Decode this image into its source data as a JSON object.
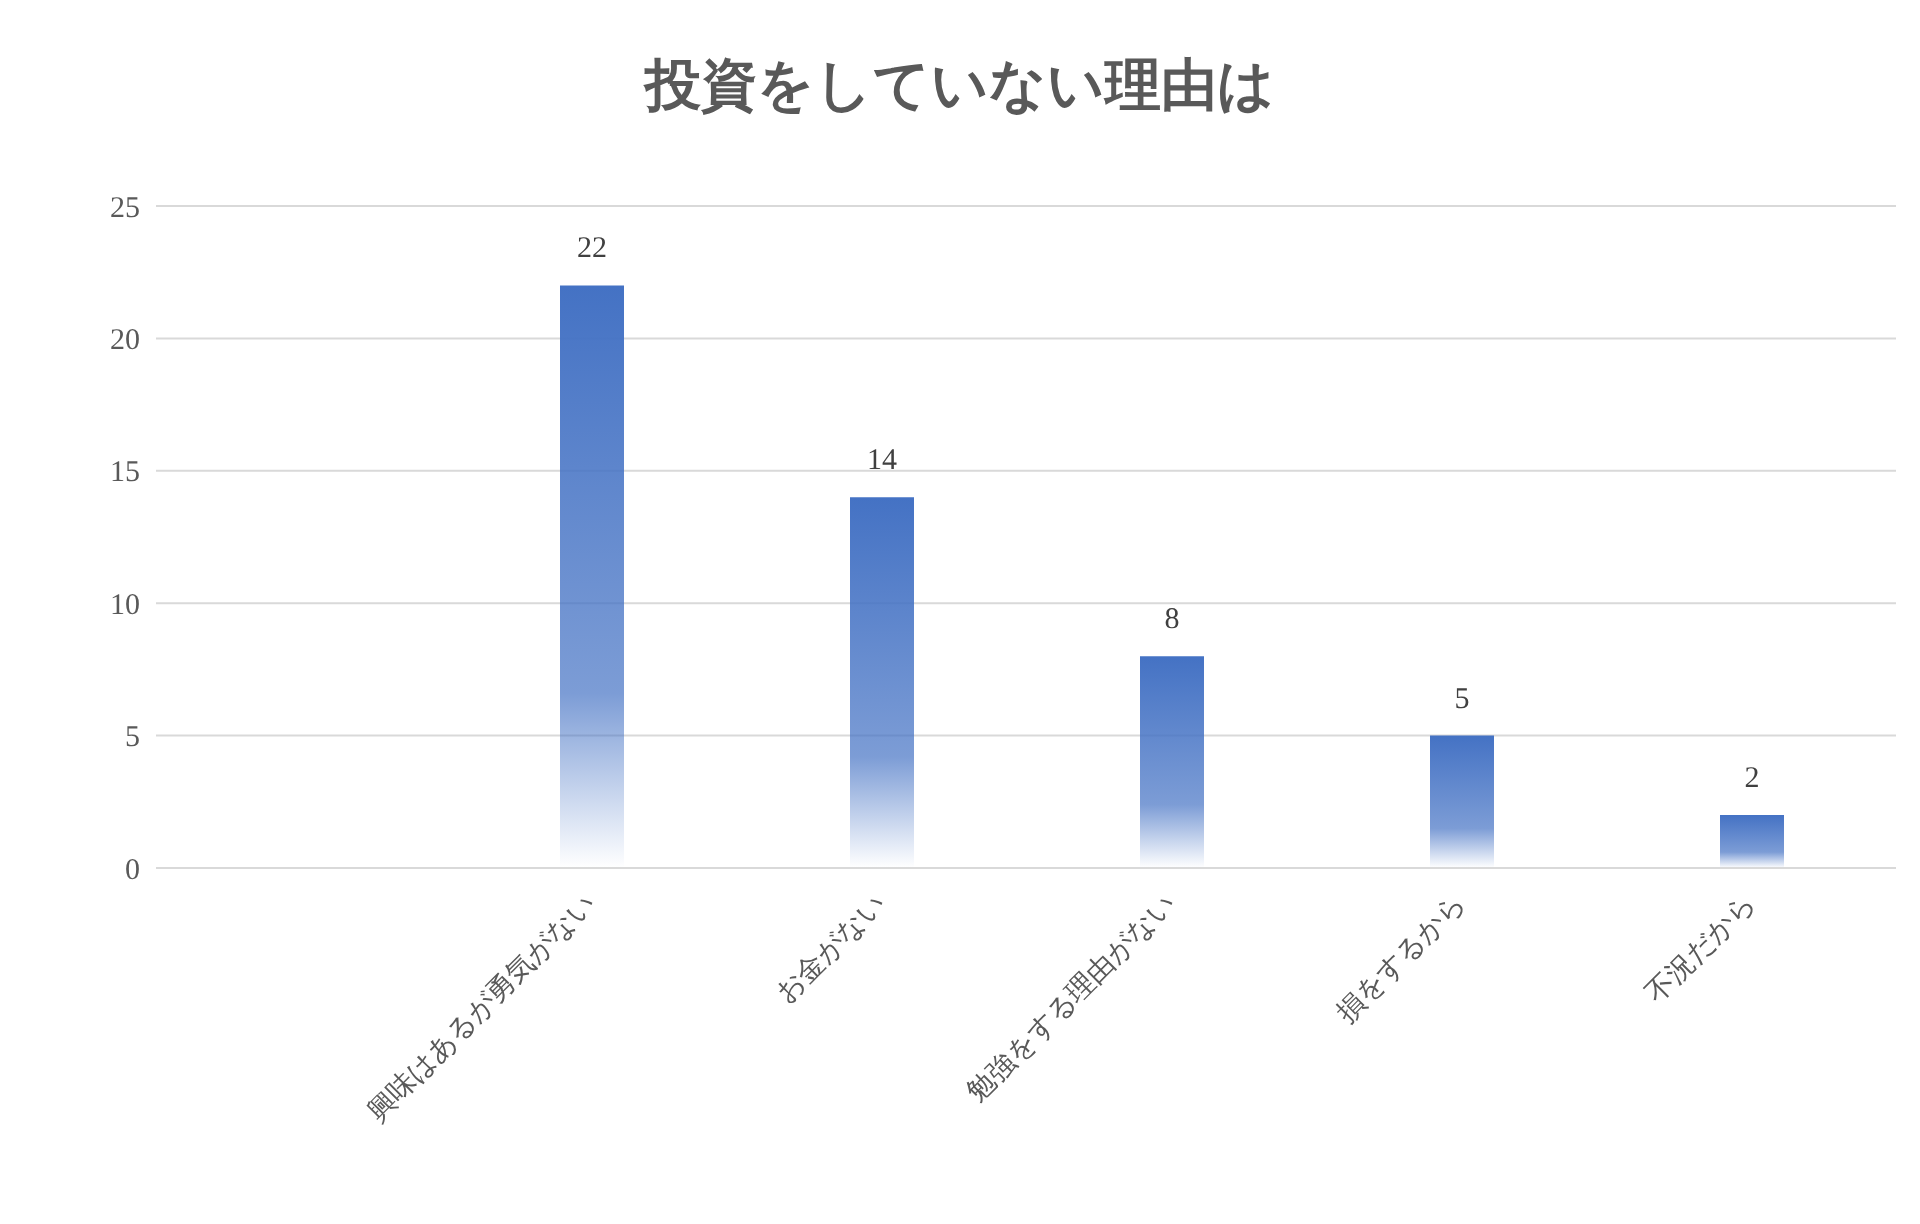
{
  "chart_data": {
    "type": "bar",
    "title": "投資をしていない理由は",
    "categories": [
      null,
      "興味はあるが勇気がない",
      "お金がない",
      "勉強をする理由がない",
      "損をするから",
      "不況だから"
    ],
    "values": [
      null,
      22,
      14,
      8,
      5,
      2
    ],
    "color": "#4472c4",
    "ylim": [
      0,
      25
    ],
    "yticks": [
      0,
      5,
      10,
      15,
      20,
      25
    ],
    "grid": "y",
    "data_labels": true
  }
}
